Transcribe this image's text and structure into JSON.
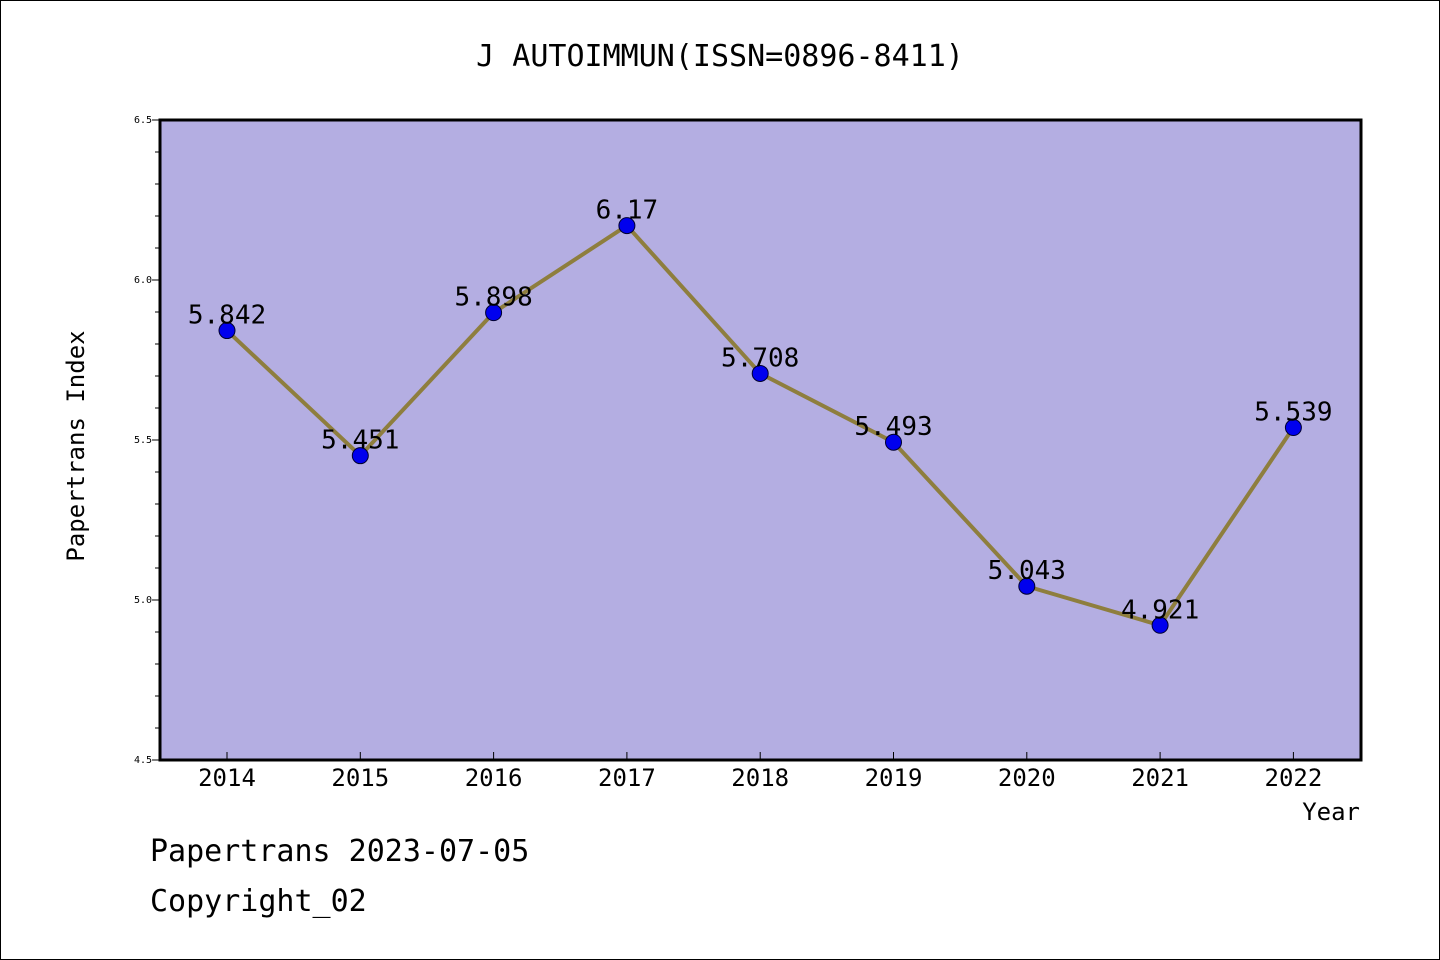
{
  "chart_data": {
    "type": "line",
    "title": "J AUTOIMMUN(ISSN=0896-8411)",
    "xlabel": "Year",
    "ylabel": "Papertrans Index",
    "categories": [
      "2014",
      "2015",
      "2016",
      "2017",
      "2018",
      "2019",
      "2020",
      "2021",
      "2022"
    ],
    "values": [
      5.842,
      5.451,
      5.898,
      6.17,
      5.708,
      5.493,
      5.043,
      4.921,
      5.539
    ],
    "data_labels": [
      "5.842",
      "5.451",
      "5.898",
      "6.17",
      "5.708",
      "5.493",
      "5.043",
      "4.921",
      "5.539"
    ],
    "ylim": [
      4.5,
      6.5
    ],
    "yticks": [
      "4.5",
      "5.0",
      "5.5",
      "6.0",
      "6.5"
    ],
    "grid": false,
    "colors": {
      "plot_background": "#b4aee2",
      "line": "#8e7e3e",
      "marker": "#0000ee"
    }
  },
  "footer": {
    "date_line": "Papertrans 2023-07-05",
    "copyright_line": "Copyright_02"
  }
}
